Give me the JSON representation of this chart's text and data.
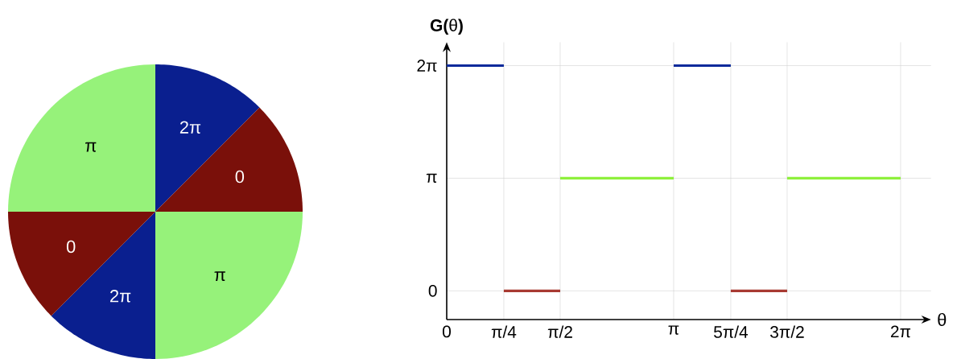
{
  "chart_data": [
    {
      "type": "pie",
      "categories": [
        "2π",
        "0",
        "π",
        "2π",
        "0",
        "π"
      ],
      "values": [
        12.5,
        12.5,
        25,
        12.5,
        12.5,
        25
      ],
      "colors": [
        "#0a1f8f",
        "#7a100a",
        "#96f27a",
        "#0a1f8f",
        "#7a100a",
        "#96f27a"
      ]
    },
    {
      "type": "line",
      "xlabel": "θ",
      "ylabel": "**G(**θ**)**",
      "xlim": [
        0,
        6.7
      ],
      "ylim": [
        -0.8,
        6.93
      ],
      "xticks": [
        {
          "value": 0,
          "label": "0"
        },
        {
          "value": 0.79,
          "label": "π/4"
        },
        {
          "value": 1.57,
          "label": "π/2"
        },
        {
          "value": 3.14,
          "label": "π"
        },
        {
          "value": 3.93,
          "label": "5π/4"
        },
        {
          "value": 4.71,
          "label": "3π/2"
        },
        {
          "value": 6.28,
          "label": "2π"
        }
      ],
      "yticks": [
        {
          "value": 0,
          "label": "0"
        },
        {
          "value": 3.14,
          "label": "π"
        },
        {
          "value": 6.28,
          "label": "2π"
        }
      ],
      "grid": true,
      "series": [
        {
          "color": "#0a2a9a",
          "x": [
            0,
            0.79
          ],
          "values": [
            6.28,
            6.28
          ]
        },
        {
          "color": "#a83a32",
          "x": [
            0.79,
            1.57
          ],
          "values": [
            0,
            0
          ]
        },
        {
          "color": "#8ef03c",
          "x": [
            1.57,
            3.14
          ],
          "values": [
            3.14,
            3.14
          ]
        },
        {
          "color": "#0a2a9a",
          "x": [
            3.14,
            3.93
          ],
          "values": [
            6.28,
            6.28
          ]
        },
        {
          "color": "#a83a32",
          "x": [
            3.93,
            4.71
          ],
          "values": [
            0,
            0
          ]
        },
        {
          "color": "#8ef03c",
          "x": [
            4.71,
            6.28
          ],
          "values": [
            3.14,
            3.14
          ]
        }
      ]
    }
  ]
}
